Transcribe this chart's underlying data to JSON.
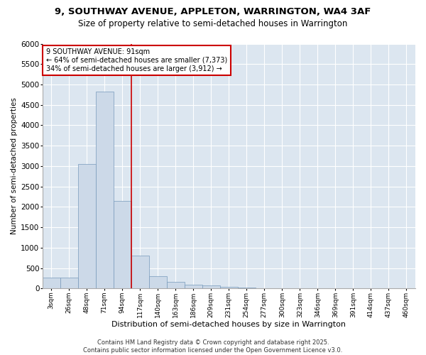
{
  "title1": "9, SOUTHWAY AVENUE, APPLETON, WARRINGTON, WA4 3AF",
  "title2": "Size of property relative to semi-detached houses in Warrington",
  "xlabel": "Distribution of semi-detached houses by size in Warrington",
  "ylabel": "Number of semi-detached properties",
  "bar_labels": [
    "3sqm",
    "26sqm",
    "48sqm",
    "71sqm",
    "94sqm",
    "117sqm",
    "140sqm",
    "163sqm",
    "186sqm",
    "209sqm",
    "231sqm",
    "254sqm",
    "277sqm",
    "300sqm",
    "323sqm",
    "346sqm",
    "369sqm",
    "391sqm",
    "414sqm",
    "437sqm",
    "460sqm"
  ],
  "bar_values": [
    270,
    270,
    3050,
    4820,
    2150,
    800,
    300,
    170,
    100,
    70,
    50,
    30,
    10,
    5,
    2,
    1,
    0,
    0,
    0,
    0,
    0
  ],
  "vline_x": 4.5,
  "annotation_text": "9 SOUTHWAY AVENUE: 91sqm\n← 64% of semi-detached houses are smaller (7,373)\n34% of semi-detached houses are larger (3,912) →",
  "bar_color": "#ccd9e8",
  "bar_edge_color": "#7799bb",
  "vline_color": "#cc0000",
  "annotation_box_edgecolor": "#cc0000",
  "fig_facecolor": "#ffffff",
  "ax_facecolor": "#dce6f0",
  "grid_color": "#ffffff",
  "ylim": [
    0,
    6000
  ],
  "yticks": [
    0,
    500,
    1000,
    1500,
    2000,
    2500,
    3000,
    3500,
    4000,
    4500,
    5000,
    5500,
    6000
  ],
  "footer_text": "Contains HM Land Registry data © Crown copyright and database right 2025.\nContains public sector information licensed under the Open Government Licence v3.0.",
  "title1_fontsize": 9.5,
  "title2_fontsize": 8.5,
  "xlabel_fontsize": 8,
  "ylabel_fontsize": 7.5,
  "ytick_fontsize": 7.5,
  "xtick_fontsize": 6.5,
  "annotation_fontsize": 7,
  "footer_fontsize": 6
}
